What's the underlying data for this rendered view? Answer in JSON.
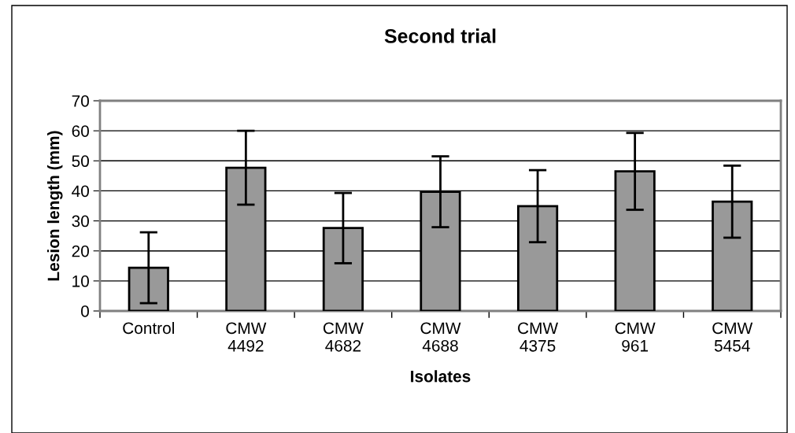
{
  "chart_data": {
    "type": "bar",
    "title": "Second trial",
    "xlabel": "Isolates",
    "ylabel": "Lesion length (mm)",
    "categories": [
      "Control",
      "CMW\n4492",
      "CMW\n4682",
      "CMW\n4688",
      "CMW\n4375",
      "CMW\n961",
      "CMW\n5454"
    ],
    "values": [
      14.4,
      47.7,
      27.6,
      39.7,
      34.9,
      46.5,
      36.4
    ],
    "errors": [
      11.8,
      12.3,
      11.7,
      11.8,
      12,
      12.8,
      12
    ],
    "color": "#999999",
    "ylim": [
      0,
      70
    ],
    "yticks": [
      0,
      10,
      20,
      30,
      40,
      50,
      60,
      70
    ],
    "grid": "y",
    "legend": false
  }
}
